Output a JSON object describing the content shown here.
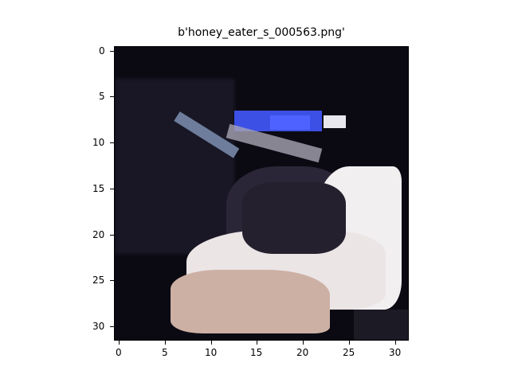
{
  "figure": {
    "title": "b'honey_eater_s_000563.png'"
  },
  "axes": {
    "x_ticks": [
      "0",
      "5",
      "10",
      "15",
      "20",
      "25",
      "30"
    ],
    "y_ticks": [
      "0",
      "5",
      "10",
      "15",
      "20",
      "25",
      "30"
    ]
  },
  "image": {
    "subject": "bird",
    "dominant_colors": [
      "#0c0b14",
      "#3a4fe0",
      "#f4f1f2",
      "#2c2738",
      "#d9b6a8"
    ]
  }
}
